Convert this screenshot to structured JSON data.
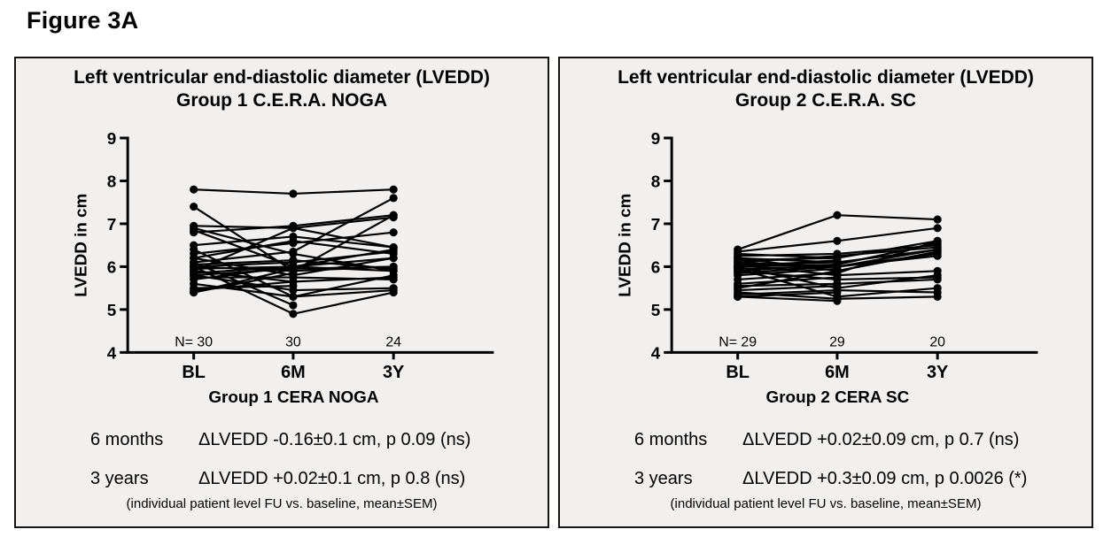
{
  "figure_label": "Figure 3A",
  "style": {
    "ink": "#000000",
    "panel_bg": "#f1f0ee",
    "panel_border": "#141414",
    "page_bg": "#ffffff"
  },
  "chart_data": [
    {
      "type": "line",
      "title_line1": "Left ventricular end-diastolic diameter (LVEDD)",
      "title_line2": "Group 1 C.E.R.A. NOGA",
      "ylabel": "LVEDD in cm",
      "xlabel": "Group 1 CERA NOGA",
      "categories": [
        "BL",
        "6M",
        "3Y"
      ],
      "n_prefix": "N=",
      "n_values": [
        "30",
        "30",
        "24"
      ],
      "ylim": [
        4,
        9
      ],
      "yticks": [
        9,
        8,
        7,
        6,
        5,
        4
      ],
      "grid": false,
      "legend": "none",
      "marker": "filled-circle",
      "series": [
        [
          7.8,
          7.7,
          7.8
        ],
        [
          7.4,
          5.9,
          7.2
        ],
        [
          6.95,
          6.9,
          7.15
        ],
        [
          6.9,
          6.3,
          5.9
        ],
        [
          6.85,
          6.0,
          6.4
        ],
        [
          6.8,
          6.95,
          7.2
        ],
        [
          6.5,
          6.7,
          6.45
        ],
        [
          6.4,
          5.3,
          5.8
        ],
        [
          6.3,
          6.55,
          6.8
        ],
        [
          6.2,
          6.6,
          6.3
        ],
        [
          6.2,
          5.8,
          6.2
        ],
        [
          6.1,
          6.35,
          7.6
        ],
        [
          6.1,
          5.1,
          null
        ],
        [
          6.05,
          6.15,
          5.95
        ],
        [
          6.0,
          6.1,
          6.35
        ],
        [
          6.0,
          5.9,
          6.0
        ],
        [
          6.0,
          4.9,
          5.4
        ],
        [
          5.95,
          6.0,
          5.9
        ],
        [
          5.9,
          6.9,
          6.45
        ],
        [
          5.9,
          5.65,
          5.75
        ],
        [
          5.85,
          6.0,
          6.2
        ],
        [
          5.8,
          5.45,
          5.5
        ],
        [
          5.8,
          5.95,
          null
        ],
        [
          5.75,
          5.75,
          5.7
        ],
        [
          5.7,
          6.0,
          null
        ],
        [
          5.6,
          5.3,
          5.45
        ],
        [
          5.5,
          5.55,
          null
        ],
        [
          5.45,
          5.65,
          null
        ],
        [
          5.4,
          5.85,
          null
        ],
        [
          5.4,
          5.95,
          6.0
        ]
      ],
      "stats": [
        {
          "period": "6 months",
          "result": "ΔLVEDD -0.16±0.1 cm, p 0.09 (ns)"
        },
        {
          "period": "3 years",
          "result": "ΔLVEDD +0.02±0.1 cm, p 0.8 (ns)"
        }
      ],
      "footnote": "(individual patient level FU vs. baseline, mean±SEM)"
    },
    {
      "type": "line",
      "title_line1": "Left ventricular end-diastolic diameter (LVEDD)",
      "title_line2": "Group 2 C.E.R.A. SC",
      "ylabel": "LVEDD in cm",
      "xlabel": "Group 2 CERA SC",
      "categories": [
        "BL",
        "6M",
        "3Y"
      ],
      "n_prefix": "N=",
      "n_values": [
        "29",
        "29",
        "20"
      ],
      "ylim": [
        4,
        9
      ],
      "yticks": [
        9,
        8,
        7,
        6,
        5,
        4
      ],
      "grid": false,
      "legend": "none",
      "marker": "filled-circle",
      "series": [
        [
          6.4,
          7.2,
          7.1
        ],
        [
          6.35,
          6.6,
          6.9
        ],
        [
          6.3,
          6.2,
          6.6
        ],
        [
          6.25,
          6.3,
          6.5
        ],
        [
          6.2,
          6.1,
          6.4
        ],
        [
          6.2,
          5.9,
          6.35
        ],
        [
          6.15,
          6.2,
          null
        ],
        [
          6.1,
          6.0,
          6.3
        ],
        [
          6.1,
          6.25,
          6.45
        ],
        [
          6.05,
          5.8,
          5.9
        ],
        [
          6.05,
          6.1,
          null
        ],
        [
          6.0,
          6.05,
          6.55
        ],
        [
          6.0,
          5.5,
          5.8
        ],
        [
          6.0,
          6.15,
          null
        ],
        [
          5.95,
          6.0,
          6.4
        ],
        [
          5.95,
          5.3,
          5.5
        ],
        [
          5.9,
          6.05,
          null
        ],
        [
          5.9,
          5.7,
          5.75
        ],
        [
          5.85,
          6.0,
          6.25
        ],
        [
          5.8,
          5.95,
          null
        ],
        [
          5.7,
          5.85,
          6.6
        ],
        [
          5.6,
          5.75,
          null
        ],
        [
          5.55,
          5.6,
          5.7
        ],
        [
          5.5,
          5.9,
          6.35
        ],
        [
          5.45,
          5.55,
          null
        ],
        [
          5.4,
          5.25,
          5.3
        ],
        [
          5.35,
          5.45,
          5.4
        ],
        [
          5.3,
          5.4,
          null
        ],
        [
          5.3,
          5.2,
          null
        ]
      ],
      "stats": [
        {
          "period": "6 months",
          "result": "ΔLVEDD +0.02±0.09 cm, p 0.7 (ns)"
        },
        {
          "period": "3 years",
          "result": "ΔLVEDD +0.3±0.09 cm, p 0.0026 (*)"
        }
      ],
      "footnote": "(individual patient level FU vs. baseline, mean±SEM)"
    }
  ]
}
